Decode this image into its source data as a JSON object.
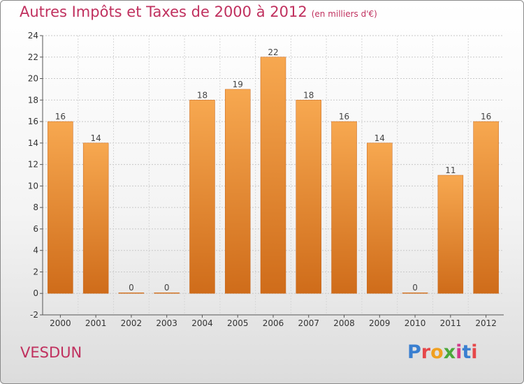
{
  "chart_data": {
    "type": "bar",
    "title": "Autres Impôts et Taxes de 2000 à 2012",
    "subtitle": "(en milliers d'€)",
    "categories": [
      "2000",
      "2001",
      "2002",
      "2003",
      "2004",
      "2005",
      "2006",
      "2007",
      "2008",
      "2009",
      "2010",
      "2011",
      "2012"
    ],
    "values": [
      16,
      14,
      0,
      0,
      18,
      19,
      22,
      18,
      16,
      14,
      0,
      11,
      16
    ],
    "ylim": [
      -2,
      24
    ],
    "yticks": [
      -2,
      0,
      2,
      4,
      6,
      8,
      10,
      12,
      14,
      16,
      18,
      20,
      22,
      24
    ],
    "grid": true,
    "bar_color": "#f0913a"
  },
  "location": "VESDUN",
  "logo": {
    "letters": [
      "P",
      "r",
      "o",
      "x",
      "i",
      "t",
      "i"
    ],
    "colors": [
      "#3a7fd0",
      "#e6484a",
      "#f0a020",
      "#4aa83a",
      "#d23a8a",
      "#3a7fd0",
      "#e6484a"
    ]
  }
}
